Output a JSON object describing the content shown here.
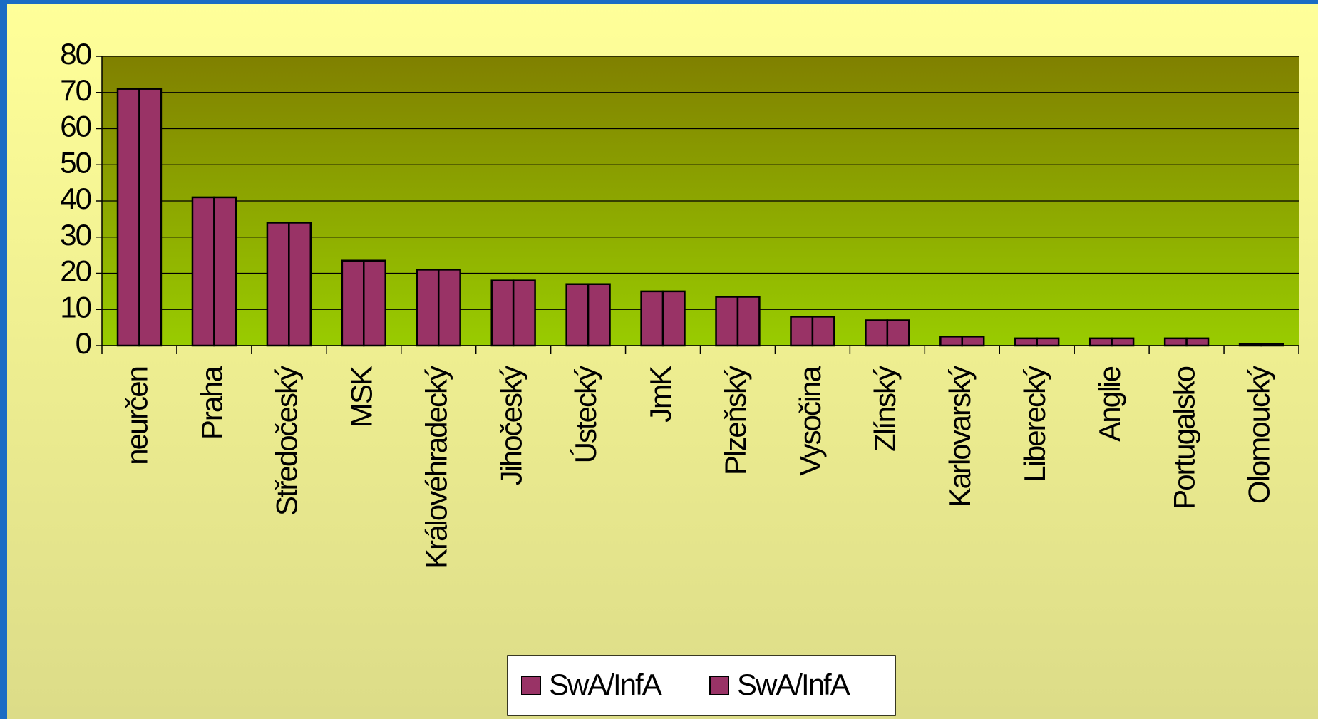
{
  "chart_data": {
    "type": "bar",
    "categories": [
      "neurčen",
      "Praha",
      "Středočeský",
      "MSK",
      "Královéhradecký",
      "Jihočeský",
      "Ústecký",
      "JmK",
      "Plzeňský",
      "Vysočina",
      "Zlínský",
      "Karlovarský",
      "Liberecký",
      "Anglie",
      "Portugalsko",
      "Olomoucký"
    ],
    "series": [
      {
        "name": "SwA/InfA",
        "color": "#993366",
        "values": [
          71,
          41,
          34,
          23.5,
          21,
          18,
          17,
          15,
          13.5,
          8,
          7,
          2.5,
          2,
          2,
          2,
          0.5
        ]
      },
      {
        "name": "SwA/InfA",
        "color": "#993366",
        "values": [
          71,
          41,
          34,
          23.5,
          21,
          18,
          17,
          15,
          13.5,
          8,
          7,
          2.5,
          2,
          2,
          2,
          0.5
        ]
      }
    ],
    "ylim": [
      0,
      80
    ],
    "yticks": [
      0,
      10,
      20,
      30,
      40,
      50,
      60,
      70,
      80
    ],
    "grid": true,
    "legend": "bottom"
  }
}
